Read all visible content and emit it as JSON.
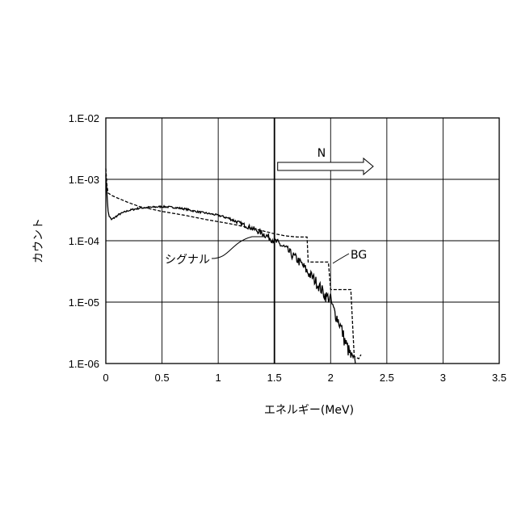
{
  "chart_data": {
    "type": "line",
    "xlabel": "エネルギー(MeV)",
    "ylabel": "カウント",
    "x_ticks": [
      "0",
      "0.5",
      "1",
      "1.5",
      "2",
      "2.5",
      "3",
      "3.5"
    ],
    "y_ticks": [
      "1.E-06",
      "1.E-05",
      "1.E-04",
      "1.E-03",
      "1.E-02"
    ],
    "xlim": [
      0,
      3.5
    ],
    "ylim": [
      1e-06,
      0.01
    ],
    "y_scale": "log",
    "grid": true,
    "series": [
      {
        "name": "シグナル",
        "style": "solid",
        "x": [
          0.0,
          0.01,
          0.02,
          0.03,
          0.05,
          0.08,
          0.12,
          0.2,
          0.3,
          0.4,
          0.5,
          0.6,
          0.7,
          0.8,
          0.9,
          1.0,
          1.1,
          1.2,
          1.3,
          1.4,
          1.5,
          1.6,
          1.65,
          1.7,
          1.75,
          1.8,
          1.85,
          1.9,
          1.95,
          2.0,
          2.02,
          2.05,
          2.08,
          2.1,
          2.12,
          2.15,
          2.18,
          2.2,
          2.22
        ],
        "y": [
          0.0012,
          0.0006,
          0.0003,
          0.00025,
          0.00022,
          0.00024,
          0.00027,
          0.00031,
          0.00034,
          0.00035,
          0.00036,
          0.00035,
          0.00033,
          0.0003,
          0.00028,
          0.00026,
          0.00023,
          0.00019,
          0.00016,
          0.00013,
          0.0001,
          7.5e-05,
          6e-05,
          5e-05,
          4e-05,
          3e-05,
          2.4e-05,
          1.8e-05,
          1.3e-05,
          1.1e-05,
          8e-06,
          6e-06,
          4.5e-06,
          3.5e-06,
          2.5e-06,
          1.8e-06,
          1.3e-06,
          1.1e-06,
          1e-06
        ]
      },
      {
        "name": "BG",
        "style": "dashed",
        "x": [
          0.0,
          0.01,
          0.02,
          0.05,
          0.1,
          0.2,
          0.3,
          0.5,
          0.7,
          0.9,
          1.1,
          1.3,
          1.5,
          1.6,
          1.7,
          1.79,
          1.8,
          1.98,
          2.0,
          2.18,
          2.2,
          2.21,
          2.25,
          2.27
        ],
        "y": [
          0.0015,
          0.0008,
          0.0006,
          0.00055,
          0.0005,
          0.00042,
          0.00036,
          0.0003,
          0.00026,
          0.00022,
          0.00019,
          0.00016,
          0.00013,
          0.00012,
          0.000115,
          0.000115,
          4.5e-05,
          4.5e-05,
          1.6e-05,
          1.6e-05,
          3e-06,
          1.3e-06,
          1.2e-06,
          1.4e-06
        ]
      }
    ],
    "annotations": {
      "signal_label": "シグナル",
      "bg_label": "BG",
      "arrow_label": "N",
      "vertical_line_x": 1.5
    }
  }
}
